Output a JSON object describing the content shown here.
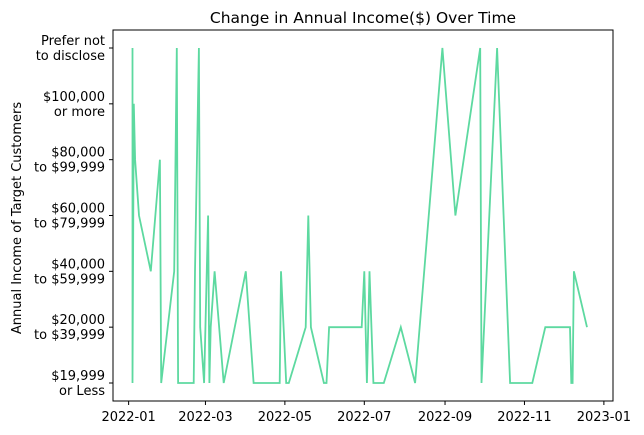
{
  "chart_data": {
    "type": "line",
    "title": "Change in Annual Income($) Over Time",
    "xlabel": "",
    "ylabel": "Annual Income of Target Customers",
    "y_categories": [
      [
        "$19,999",
        "or Less"
      ],
      [
        "$20,000",
        "to $39,999"
      ],
      [
        "$40,000",
        "to $59,999"
      ],
      [
        "$60,000",
        "to $79,999"
      ],
      [
        "$80,000",
        "to $99,999"
      ],
      [
        "$100,000",
        "or more"
      ],
      [
        "Prefer not",
        "to disclose"
      ]
    ],
    "x_ticks": [
      "2022-01",
      "2022-03",
      "2022-05",
      "2022-07",
      "2022-09",
      "2022-11",
      "2023-01"
    ],
    "xlim": [
      "2021-12-20",
      "2023-01-08"
    ],
    "grid": false,
    "line_color": "#5dd9a0",
    "series": [
      {
        "x": [
          "2022-01-04",
          "2022-01-04",
          "2022-01-04",
          "2022-01-05",
          "2022-01-06",
          "2022-01-09",
          "2022-01-18",
          "2022-01-25",
          "2022-01-26",
          "2022-02-05",
          "2022-02-07",
          "2022-02-08",
          "2022-02-13",
          "2022-02-19",
          "2022-02-20",
          "2022-02-21",
          "2022-02-24",
          "2022-02-25",
          "2022-02-28",
          "2022-03-03",
          "2022-03-04",
          "2022-03-05",
          "2022-03-08",
          "2022-03-15",
          "2022-04-01",
          "2022-04-07",
          "2022-04-25",
          "2022-04-27",
          "2022-04-28",
          "2022-05-02",
          "2022-05-04",
          "2022-05-17",
          "2022-05-19",
          "2022-05-21",
          "2022-05-31",
          "2022-06-02",
          "2022-06-04",
          "2022-06-17",
          "2022-06-29",
          "2022-07-01",
          "2022-07-03",
          "2022-07-05",
          "2022-07-08",
          "2022-07-12",
          "2022-07-16",
          "2022-07-29",
          "2022-08-09",
          "2022-08-30",
          "2022-09-09",
          "2022-09-28",
          "2022-09-29",
          "2022-10-11",
          "2022-10-16",
          "2022-10-21",
          "2022-11-07",
          "2022-11-17",
          "2022-12-06",
          "2022-12-07",
          "2022-12-08",
          "2022-12-09",
          "2022-12-19"
        ],
        "y": [
          1,
          6,
          0,
          5,
          4,
          3,
          2,
          4,
          0,
          2,
          6,
          0,
          0,
          0,
          0,
          2,
          6,
          1,
          0,
          3,
          0,
          1,
          2,
          0,
          2,
          0,
          0,
          0,
          2,
          0,
          0,
          1,
          3,
          1,
          0,
          0,
          1,
          1,
          1,
          2,
          0,
          2,
          0,
          0,
          0,
          1,
          0,
          6,
          3,
          6,
          0,
          6,
          3,
          0,
          0,
          1,
          1,
          0,
          0,
          2,
          1
        ]
      }
    ]
  }
}
